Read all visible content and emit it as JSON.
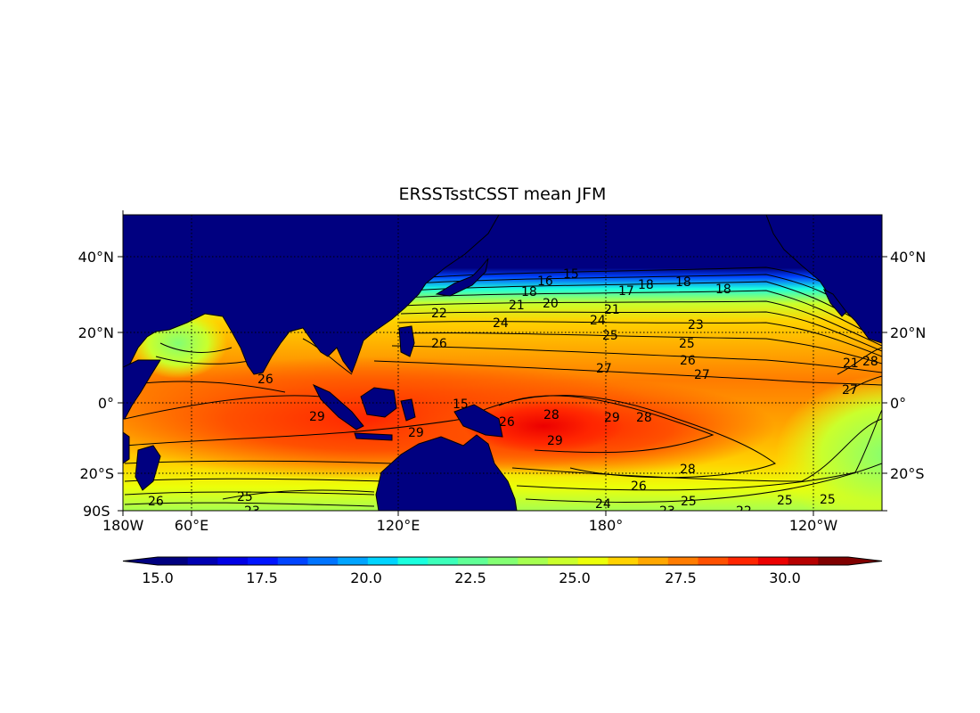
{
  "title": "ERSSTsstCSST mean JFM",
  "lat_labels": [
    "40°N",
    "20°N",
    "0°",
    "20°S"
  ],
  "lon_labels": [
    "60°E",
    "120°E",
    "180°",
    "120°W"
  ],
  "corner_label_overlap": [
    "90S",
    "180W"
  ],
  "colorbar": {
    "ticks": [
      "15.0",
      "17.5",
      "20.0",
      "22.5",
      "25.0",
      "27.5",
      "30.0"
    ],
    "colors": [
      "#000080",
      "#0000b2",
      "#0000e5",
      "#0014ff",
      "#0044ff",
      "#0074ff",
      "#00a4ff",
      "#00d4ff",
      "#1affde",
      "#3cffba",
      "#60ff96",
      "#83ff73",
      "#a6ff50",
      "#caff2c",
      "#ecff09",
      "#ffd200",
      "#ffa700",
      "#ff7c00",
      "#ff5000",
      "#ff2500",
      "#ec0000",
      "#b60000",
      "#800000"
    ],
    "extend": "both"
  },
  "map": {
    "land_color": "#000080",
    "grid": "dotted",
    "contour_labels": [
      "15",
      "16",
      "18",
      "17",
      "18",
      "18",
      "18",
      "20",
      "21",
      "22",
      "24",
      "21",
      "24",
      "23",
      "25",
      "25",
      "26",
      "27",
      "26",
      "27",
      "21",
      "28",
      "27",
      "26",
      "29",
      "29",
      "28",
      "29",
      "29",
      "28",
      "26",
      "24",
      "25",
      "26",
      "25",
      "25",
      "23",
      "23",
      "22",
      "15",
      "25",
      "26",
      "28"
    ]
  }
}
